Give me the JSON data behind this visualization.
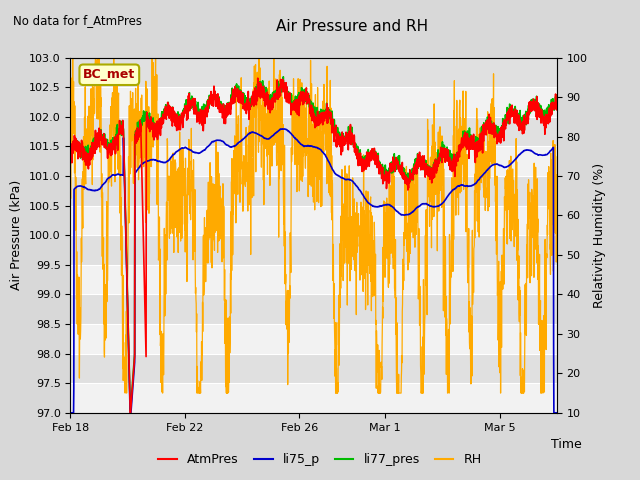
{
  "title": "Air Pressure and RH",
  "no_data_label": "No data for f_AtmPres",
  "station_label": "BC_met",
  "xlabel": "Time",
  "ylabel_left": "Air Pressure (kPa)",
  "ylabel_right": "Relativity Humidity (%)",
  "ylim_left": [
    97.0,
    103.0
  ],
  "ylim_right": [
    10,
    100
  ],
  "yticks_left": [
    97.0,
    97.5,
    98.0,
    98.5,
    99.0,
    99.5,
    100.0,
    100.5,
    101.0,
    101.5,
    102.0,
    102.5,
    103.0
  ],
  "yticks_right": [
    10,
    20,
    30,
    40,
    50,
    60,
    70,
    80,
    90,
    100
  ],
  "colors": {
    "AtmPres": "#ff0000",
    "li75_p": "#0000cc",
    "li77_pres": "#00bb00",
    "RH": "#ffaa00",
    "fig_bg": "#d8d8d8",
    "plot_bg": "#e0e0e0",
    "grid_light": "#ffffff",
    "grid_dark": "#cccccc",
    "station_box_face": "#ffffcc",
    "station_box_edge": "#aaaa00",
    "station_text": "#aa0000"
  },
  "legend": [
    "AtmPres",
    "li75_p",
    "li77_pres",
    "RH"
  ],
  "legend_colors": [
    "#ff0000",
    "#0000cc",
    "#00bb00",
    "#ffaa00"
  ],
  "xtick_days": [
    0,
    4,
    8,
    11,
    15
  ],
  "xtick_labels": [
    "Feb 18",
    "Feb 22",
    "Feb 26",
    "Mar 1",
    "Mar 5"
  ],
  "xlim": [
    0,
    17
  ]
}
